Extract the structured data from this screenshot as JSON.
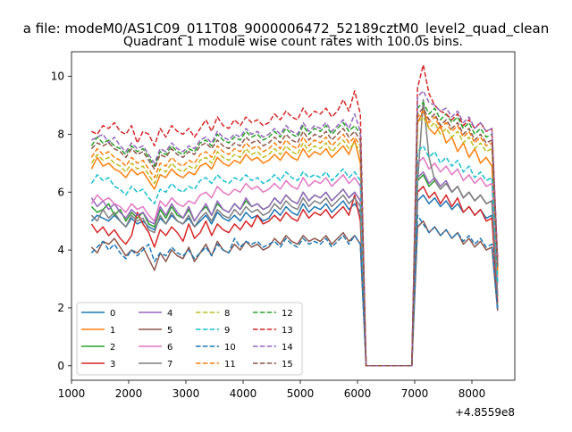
{
  "chart_data": {
    "type": "line",
    "suptitle": "a file: modeM0/AS1C09_011T08_9000006472_52189cztM0_level2_quad_clean",
    "title": "Quadrant 1 module wise count rates with 100.0s bins.",
    "xlabel": "",
    "ylabel": "",
    "offset_text": "+4.8559e8",
    "xlim": [
      1000,
      8750
    ],
    "ylim": [
      -0.5,
      10.85
    ],
    "xticks": [
      1000,
      2000,
      3000,
      4000,
      5000,
      6000,
      7000,
      8000
    ],
    "yticks": [
      0,
      2,
      4,
      6,
      8,
      10
    ],
    "grid": false,
    "legend_placement": "lower-left",
    "legend_columns": 4,
    "x": [
      1350,
      1450,
      1550,
      1650,
      1750,
      1850,
      1950,
      2050,
      2150,
      2250,
      2350,
      2450,
      2550,
      2650,
      2750,
      2850,
      2950,
      3050,
      3150,
      3250,
      3350,
      3450,
      3550,
      3650,
      3750,
      3850,
      3950,
      4050,
      4150,
      4250,
      4350,
      4450,
      4550,
      4650,
      4750,
      4850,
      4950,
      5050,
      5150,
      5250,
      5350,
      5450,
      5550,
      5650,
      5750,
      5850,
      5950,
      6050,
      6150,
      6950,
      7050,
      7150,
      7250,
      7350,
      7450,
      7550,
      7650,
      7750,
      7850,
      7950,
      8050,
      8150,
      8250,
      8350,
      8450
    ],
    "series": [
      {
        "name": "0",
        "color": "#1f77b4",
        "dash": "solid",
        "values": [
          5.0,
          5.2,
          5.1,
          5.0,
          5.2,
          5.0,
          4.8,
          5.1,
          4.9,
          5.0,
          4.8,
          4.7,
          5.1,
          4.9,
          5.2,
          5.0,
          4.9,
          5.1,
          4.8,
          5.0,
          5.2,
          4.9,
          5.3,
          5.1,
          5.0,
          5.2,
          5.0,
          5.3,
          5.1,
          5.2,
          5.0,
          5.1,
          5.4,
          5.2,
          5.5,
          5.3,
          5.2,
          5.6,
          5.3,
          5.5,
          5.4,
          5.6,
          5.3,
          5.5,
          5.7,
          5.4,
          5.6,
          5.3,
          0,
          0,
          5.7,
          5.9,
          5.6,
          5.8,
          5.5,
          5.7,
          5.4,
          5.6,
          5.3,
          5.5,
          5.2,
          5.4,
          5.1,
          5.2,
          2.0
        ]
      },
      {
        "name": "1",
        "color": "#ff7f0e",
        "dash": "solid",
        "values": [
          6.8,
          7.2,
          6.9,
          7.0,
          6.8,
          6.7,
          6.5,
          6.8,
          6.6,
          6.7,
          6.4,
          6.1,
          6.6,
          6.5,
          6.8,
          6.6,
          6.5,
          6.7,
          6.6,
          6.9,
          7.0,
          6.8,
          7.2,
          7.0,
          6.9,
          7.1,
          7.0,
          7.3,
          7.1,
          7.2,
          7.0,
          7.1,
          7.3,
          7.1,
          7.4,
          7.2,
          7.1,
          7.5,
          7.2,
          7.4,
          7.3,
          7.5,
          7.2,
          7.4,
          7.6,
          7.3,
          7.8,
          7.0,
          0,
          0,
          8.4,
          8.8,
          8.2,
          8.0,
          8.3,
          7.7,
          7.9,
          7.4,
          7.7,
          7.2,
          7.5,
          7.0,
          7.2,
          6.9,
          3.1
        ]
      },
      {
        "name": "2",
        "color": "#2ca02c",
        "dash": "solid",
        "values": [
          5.5,
          5.3,
          5.4,
          5.6,
          5.2,
          5.4,
          5.0,
          5.3,
          5.1,
          5.3,
          4.9,
          4.8,
          5.4,
          5.1,
          5.5,
          5.2,
          5.1,
          5.4,
          5.0,
          5.3,
          5.5,
          5.2,
          5.6,
          5.4,
          5.3,
          5.6,
          5.4,
          5.7,
          5.5,
          5.6,
          5.4,
          5.5,
          5.8,
          5.6,
          5.9,
          5.7,
          5.6,
          6.0,
          5.7,
          5.9,
          5.8,
          6.0,
          5.7,
          5.9,
          6.1,
          5.8,
          6.0,
          5.7,
          0,
          0,
          6.4,
          6.6,
          6.2,
          6.4,
          6.1,
          6.3,
          6.0,
          6.2,
          5.8,
          6.0,
          5.7,
          5.9,
          5.6,
          5.7,
          2.4
        ]
      },
      {
        "name": "3",
        "color": "#d62728",
        "dash": "solid",
        "values": [
          4.9,
          4.6,
          4.8,
          4.5,
          4.7,
          4.4,
          4.2,
          4.5,
          5.3,
          4.9,
          4.6,
          4.1,
          4.7,
          4.5,
          4.8,
          4.6,
          4.3,
          4.9,
          4.4,
          4.6,
          5.0,
          4.5,
          4.9,
          4.7,
          4.6,
          4.9,
          4.7,
          5.0,
          4.8,
          5.2,
          4.9,
          5.0,
          5.2,
          5.0,
          5.3,
          5.1,
          5.0,
          5.4,
          5.1,
          5.3,
          5.2,
          5.4,
          5.1,
          5.3,
          5.5,
          5.2,
          5.9,
          5.0,
          0,
          0,
          6.0,
          6.2,
          5.8,
          6.0,
          5.6,
          5.9,
          5.5,
          5.8,
          5.3,
          5.5,
          5.2,
          5.4,
          5.0,
          5.1,
          2.2
        ]
      },
      {
        "name": "4",
        "color": "#9467bd",
        "dash": "solid",
        "values": [
          5.8,
          5.5,
          5.7,
          5.4,
          5.6,
          5.3,
          5.1,
          5.4,
          5.2,
          5.3,
          5.0,
          4.9,
          5.5,
          5.2,
          5.6,
          5.3,
          5.1,
          5.5,
          5.0,
          5.3,
          5.6,
          5.2,
          5.7,
          5.4,
          5.3,
          5.6,
          5.4,
          5.8,
          5.5,
          5.6,
          5.4,
          5.5,
          5.8,
          5.6,
          5.9,
          5.7,
          5.6,
          6.0,
          5.7,
          5.9,
          5.8,
          6.0,
          5.7,
          5.9,
          6.1,
          5.8,
          6.0,
          5.7,
          0,
          0,
          6.5,
          6.7,
          6.3,
          6.5,
          6.2,
          6.4,
          6.0,
          6.2,
          5.8,
          6.0,
          5.7,
          5.9,
          5.6,
          5.7,
          2.5
        ]
      },
      {
        "name": "5",
        "color": "#8c564b",
        "dash": "solid",
        "values": [
          4.1,
          3.9,
          4.3,
          4.2,
          4.4,
          4.1,
          3.8,
          4.0,
          3.9,
          4.1,
          3.7,
          3.3,
          3.9,
          3.6,
          4.0,
          3.8,
          3.7,
          4.1,
          3.6,
          3.9,
          4.2,
          3.8,
          4.3,
          4.0,
          3.9,
          4.2,
          4.0,
          4.3,
          4.1,
          4.2,
          4.0,
          4.1,
          4.4,
          4.2,
          4.5,
          4.3,
          4.2,
          4.5,
          4.3,
          4.4,
          4.3,
          4.5,
          4.2,
          4.4,
          4.6,
          4.3,
          4.5,
          4.2,
          0,
          0,
          4.8,
          5.0,
          4.6,
          4.8,
          4.5,
          4.7,
          4.4,
          4.6,
          4.2,
          4.4,
          4.1,
          4.3,
          4.0,
          4.1,
          1.9
        ]
      },
      {
        "name": "6",
        "color": "#e377c2",
        "dash": "solid",
        "values": [
          5.6,
          5.9,
          5.7,
          5.8,
          5.6,
          5.5,
          5.3,
          5.6,
          5.4,
          5.5,
          5.2,
          5.0,
          5.7,
          5.5,
          5.8,
          5.6,
          5.5,
          5.7,
          5.6,
          5.9,
          6.0,
          5.8,
          6.2,
          6.0,
          5.9,
          6.1,
          6.0,
          6.3,
          6.1,
          6.2,
          6.0,
          6.1,
          6.3,
          6.1,
          6.4,
          6.2,
          6.1,
          6.5,
          6.2,
          6.4,
          6.3,
          6.5,
          6.2,
          6.4,
          6.6,
          6.3,
          6.5,
          6.2,
          0,
          0,
          7.0,
          7.2,
          6.8,
          7.0,
          6.7,
          6.9,
          6.6,
          6.8,
          6.4,
          6.6,
          6.3,
          6.5,
          6.2,
          6.3,
          2.8
        ]
      },
      {
        "name": "7",
        "color": "#7f7f7f",
        "dash": "solid",
        "values": [
          5.2,
          5.0,
          5.4,
          5.1,
          5.3,
          5.0,
          4.8,
          5.2,
          5.0,
          5.1,
          4.7,
          4.6,
          5.2,
          4.9,
          5.3,
          5.0,
          4.9,
          5.2,
          4.8,
          5.1,
          5.3,
          5.0,
          5.4,
          5.2,
          5.1,
          5.4,
          5.2,
          5.5,
          5.3,
          5.4,
          5.2,
          5.3,
          5.6,
          5.4,
          5.7,
          5.5,
          5.4,
          5.8,
          5.5,
          5.7,
          5.6,
          5.8,
          5.5,
          5.7,
          5.9,
          5.6,
          5.8,
          5.5,
          0,
          0,
          6.3,
          9.2,
          7.2,
          6.4,
          6.1,
          6.3,
          6.0,
          6.2,
          5.8,
          6.0,
          5.7,
          5.9,
          5.6,
          5.7,
          2.4
        ]
      },
      {
        "name": "8",
        "color": "#bcbd22",
        "dash": "dashed",
        "values": [
          7.0,
          7.3,
          7.1,
          7.2,
          7.0,
          6.9,
          6.7,
          7.0,
          6.8,
          6.9,
          6.6,
          6.3,
          6.8,
          6.7,
          7.0,
          6.8,
          6.7,
          6.9,
          6.8,
          7.1,
          7.2,
          7.0,
          7.4,
          7.2,
          7.1,
          7.3,
          7.2,
          7.5,
          7.3,
          7.4,
          7.2,
          7.3,
          7.5,
          7.3,
          7.6,
          7.4,
          7.3,
          7.7,
          7.4,
          7.6,
          7.5,
          7.7,
          7.4,
          7.6,
          7.8,
          7.5,
          7.7,
          7.4,
          0,
          0,
          8.4,
          8.6,
          8.2,
          8.4,
          8.0,
          8.2,
          7.9,
          8.1,
          7.7,
          7.9,
          7.5,
          7.7,
          7.4,
          7.5,
          3.2
        ]
      },
      {
        "name": "9",
        "color": "#17becf",
        "dash": "dashed",
        "values": [
          6.3,
          6.6,
          6.4,
          6.5,
          6.2,
          6.1,
          5.9,
          6.2,
          6.0,
          6.1,
          5.8,
          5.6,
          6.1,
          6.0,
          6.3,
          6.1,
          6.0,
          6.2,
          6.1,
          6.4,
          6.5,
          6.3,
          6.6,
          6.4,
          6.3,
          6.5,
          6.4,
          6.6,
          6.4,
          6.5,
          6.3,
          6.4,
          6.6,
          6.4,
          6.7,
          6.5,
          6.4,
          6.7,
          6.5,
          6.6,
          6.5,
          6.7,
          6.4,
          6.6,
          6.8,
          6.5,
          6.7,
          6.4,
          0,
          0,
          7.4,
          7.6,
          7.2,
          7.4,
          7.0,
          7.2,
          6.9,
          7.1,
          6.7,
          6.9,
          6.5,
          6.7,
          6.4,
          6.5,
          2.9
        ]
      },
      {
        "name": "10",
        "color": "#1f77b4",
        "dash": "dashed",
        "values": [
          3.9,
          4.1,
          4.3,
          4.0,
          4.2,
          3.9,
          3.7,
          4.0,
          3.8,
          4.0,
          4.2,
          3.6,
          3.9,
          3.8,
          4.1,
          3.9,
          3.8,
          4.0,
          3.7,
          3.9,
          4.1,
          3.8,
          4.2,
          4.0,
          3.9,
          4.4,
          4.1,
          4.3,
          4.2,
          4.3,
          4.1,
          4.2,
          4.3,
          4.1,
          4.4,
          4.2,
          4.1,
          4.4,
          4.2,
          4.3,
          4.2,
          4.4,
          4.1,
          4.3,
          4.5,
          4.2,
          4.5,
          4.2,
          0,
          0,
          5.2,
          4.9,
          4.6,
          4.8,
          4.5,
          4.7,
          4.4,
          4.6,
          4.3,
          4.5,
          4.2,
          4.4,
          4.1,
          4.2,
          1.9
        ]
      },
      {
        "name": "11",
        "color": "#ff7f0e",
        "dash": "dashed",
        "values": [
          7.2,
          7.5,
          7.3,
          7.4,
          7.2,
          7.1,
          6.9,
          7.2,
          7.0,
          7.1,
          6.8,
          6.5,
          7.0,
          6.9,
          7.2,
          7.0,
          6.9,
          7.1,
          7.0,
          7.3,
          7.4,
          7.2,
          7.6,
          7.4,
          7.3,
          7.5,
          7.4,
          7.7,
          7.5,
          7.6,
          7.4,
          7.5,
          7.7,
          7.5,
          7.8,
          7.6,
          7.5,
          7.9,
          7.6,
          7.8,
          7.7,
          7.9,
          7.6,
          7.8,
          8.0,
          7.7,
          7.9,
          7.6,
          0,
          0,
          8.6,
          8.8,
          8.4,
          8.6,
          8.2,
          8.4,
          8.1,
          8.3,
          7.9,
          8.1,
          7.7,
          7.9,
          7.6,
          7.7,
          3.3
        ]
      },
      {
        "name": "12",
        "color": "#2ca02c",
        "dash": "dashed",
        "values": [
          7.6,
          7.9,
          7.7,
          7.8,
          7.6,
          7.5,
          7.3,
          7.6,
          7.4,
          7.5,
          7.2,
          6.9,
          7.4,
          7.3,
          7.6,
          7.4,
          7.3,
          7.5,
          7.4,
          7.7,
          7.8,
          7.6,
          8.0,
          7.8,
          7.7,
          7.9,
          7.8,
          8.1,
          7.9,
          8.0,
          7.8,
          7.9,
          8.1,
          7.9,
          8.2,
          8.0,
          7.9,
          8.3,
          8.0,
          8.2,
          8.1,
          8.3,
          8.0,
          8.2,
          8.4,
          8.1,
          8.3,
          8.0,
          0,
          0,
          8.9,
          9.1,
          8.7,
          8.9,
          8.5,
          8.7,
          8.4,
          8.6,
          8.2,
          8.4,
          8.0,
          8.2,
          7.9,
          8.0,
          3.5
        ]
      },
      {
        "name": "13",
        "color": "#d62728",
        "dash": "dashed",
        "values": [
          8.1,
          8.0,
          8.3,
          8.2,
          8.4,
          8.1,
          8.0,
          8.3,
          7.7,
          8.1,
          8.0,
          7.6,
          8.2,
          7.9,
          8.3,
          8.1,
          8.0,
          8.2,
          7.9,
          8.2,
          8.5,
          8.1,
          8.6,
          8.3,
          8.2,
          8.5,
          8.3,
          8.6,
          8.4,
          8.5,
          8.3,
          8.4,
          8.7,
          8.5,
          8.8,
          8.6,
          8.5,
          8.9,
          8.6,
          8.8,
          8.7,
          8.9,
          8.6,
          8.8,
          9.2,
          8.8,
          9.5,
          8.7,
          0,
          0,
          9.6,
          10.4,
          9.4,
          9.0,
          8.8,
          8.7,
          8.5,
          8.7,
          8.3,
          8.5,
          8.2,
          8.4,
          8.1,
          8.2,
          3.7
        ]
      },
      {
        "name": "14",
        "color": "#9467bd",
        "dash": "dashed",
        "values": [
          7.8,
          7.9,
          8.0,
          7.7,
          7.9,
          7.6,
          7.4,
          7.7,
          7.5,
          7.6,
          7.3,
          7.0,
          7.5,
          7.4,
          7.7,
          7.5,
          7.4,
          7.6,
          7.5,
          7.8,
          7.9,
          7.7,
          8.1,
          7.9,
          7.8,
          8.0,
          7.9,
          8.2,
          8.0,
          8.1,
          7.9,
          8.0,
          8.2,
          8.0,
          8.3,
          8.1,
          8.0,
          8.4,
          8.1,
          8.3,
          8.2,
          8.4,
          8.1,
          8.3,
          8.5,
          8.2,
          8.7,
          8.1,
          0,
          0,
          9.3,
          9.5,
          9.1,
          9.0,
          8.8,
          8.9,
          8.6,
          8.8,
          8.4,
          8.6,
          8.2,
          8.4,
          8.1,
          8.2,
          3.6
        ]
      },
      {
        "name": "15",
        "color": "#8c564b",
        "dash": "dashed",
        "values": [
          7.5,
          7.7,
          7.6,
          7.7,
          7.5,
          7.4,
          7.2,
          7.5,
          7.3,
          7.4,
          7.1,
          6.8,
          7.3,
          7.2,
          7.5,
          7.3,
          7.2,
          7.4,
          7.3,
          7.6,
          7.7,
          7.5,
          7.8,
          7.6,
          7.5,
          7.7,
          7.6,
          7.9,
          7.7,
          7.8,
          7.6,
          7.7,
          7.9,
          7.7,
          8.0,
          7.8,
          7.7,
          8.1,
          7.8,
          8.0,
          7.9,
          8.1,
          7.8,
          8.0,
          8.2,
          7.9,
          8.1,
          7.8,
          0,
          0,
          8.7,
          8.9,
          8.5,
          8.7,
          8.3,
          8.5,
          8.2,
          8.4,
          8.0,
          8.2,
          7.8,
          8.0,
          7.7,
          7.8,
          3.4
        ]
      }
    ]
  }
}
